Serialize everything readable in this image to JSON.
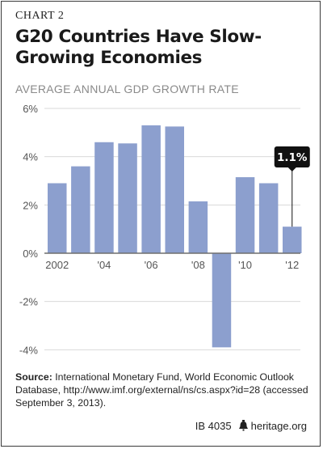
{
  "header": {
    "chart_number": "CHART 2",
    "title": "G20 Countries Have Slow-Growing Economies",
    "subtitle": "AVERAGE ANNUAL GDP GROWTH RATE"
  },
  "chart_data": {
    "type": "bar",
    "title": "G20 Countries Have Slow-Growing Economies",
    "ylabel": "AVERAGE ANNUAL GDP GROWTH RATE",
    "xlabel": "",
    "categories": [
      "2002",
      "2003",
      "2004",
      "2005",
      "2006",
      "2007",
      "2008",
      "2009",
      "2010",
      "2011",
      "2012"
    ],
    "x_tick_labels": [
      "2002",
      "",
      "'04",
      "",
      "'06",
      "",
      "'08",
      "",
      "'10",
      "",
      "'12"
    ],
    "values": [
      2.9,
      3.6,
      4.6,
      4.55,
      5.3,
      5.25,
      2.15,
      -3.9,
      3.15,
      2.9,
      1.1
    ],
    "ylim": [
      -4,
      6
    ],
    "y_ticks": [
      6,
      4,
      2,
      0,
      -2,
      -4
    ],
    "y_tick_labels": [
      "6%",
      "4%",
      "2%",
      "0%",
      "-2%",
      "-4%"
    ],
    "callout": {
      "index": 10,
      "label": "1.1%"
    },
    "grid": true,
    "legend": "none",
    "colors": {
      "bar": "#8c9fce",
      "grid": "#d9d9d9",
      "zero_line": "#6e6e6e",
      "callout_bg": "#111111"
    }
  },
  "source": {
    "label": "Source:",
    "text": " International Monetary Fund, World Economic Outlook Database, http://www.imf.org/external/ns/cs.aspx?id=28 (accessed September 3, 2013)."
  },
  "footer": {
    "ib": "IB 4035",
    "logo_icon": "liberty-bell-icon",
    "site": "heritage.org"
  }
}
